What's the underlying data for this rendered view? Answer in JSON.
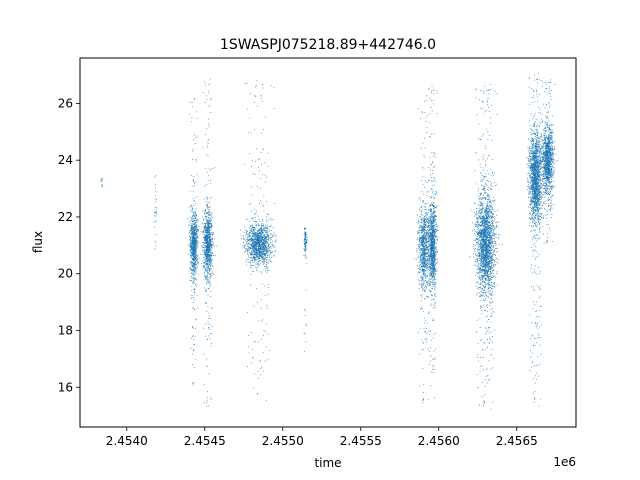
{
  "chart_data": {
    "type": "scatter",
    "title": "1SWASPJ075218.89+442746.0",
    "xlabel": "time",
    "ylabel": "flux",
    "x_offset_label": "1e6",
    "xlim": [
      2453700,
      2456880
    ],
    "ylim": [
      14.6,
      27.6
    ],
    "grid": false,
    "legend": "none",
    "marker_color": "#1f77b4",
    "x_ticks": [
      2454000,
      2454500,
      2455000,
      2455500,
      2456000,
      2456500
    ],
    "x_tick_labels": [
      "2.4540",
      "2.4545",
      "2.4550",
      "2.4555",
      "2.4560",
      "2.4565"
    ],
    "y_ticks": [
      16,
      18,
      20,
      22,
      24,
      26
    ],
    "y_tick_labels": [
      "16",
      "18",
      "20",
      "22",
      "24",
      "26"
    ],
    "series": [
      {
        "clusters": [
          {
            "x": 2453840,
            "x_spread": 3,
            "y": 23.3,
            "y_spread": 0.15,
            "y_min": 23.0,
            "y_max": 23.5,
            "n": 12
          },
          {
            "x": 2454185,
            "x_spread": 4,
            "y": 22.3,
            "y_spread": 0.8,
            "y_min": 20.8,
            "y_max": 23.5,
            "n": 30
          },
          {
            "x": 2454430,
            "x_spread": 12,
            "y": 21.0,
            "y_spread": 0.55,
            "y_min": 15.9,
            "y_max": 26.3,
            "n": 900
          },
          {
            "x": 2454520,
            "x_spread": 15,
            "y": 21.0,
            "y_spread": 0.6,
            "y_min": 15.3,
            "y_max": 27.0,
            "n": 1000
          },
          {
            "x": 2454845,
            "x_spread": 40,
            "y": 21.05,
            "y_spread": 0.35,
            "y_min": 15.5,
            "y_max": 27.0,
            "n": 1400
          },
          {
            "x": 2455145,
            "x_spread": 5,
            "y": 21.1,
            "y_spread": 0.25,
            "y_min": 17.2,
            "y_max": 21.6,
            "n": 120
          },
          {
            "x": 2455905,
            "x_spread": 18,
            "y": 20.9,
            "y_spread": 0.7,
            "y_min": 15.3,
            "y_max": 26.4,
            "n": 900
          },
          {
            "x": 2455960,
            "x_spread": 12,
            "y": 21.0,
            "y_spread": 0.75,
            "y_min": 15.6,
            "y_max": 26.8,
            "n": 1100
          },
          {
            "x": 2456300,
            "x_spread": 30,
            "y": 21.05,
            "y_spread": 0.85,
            "y_min": 15.2,
            "y_max": 26.8,
            "n": 2400
          },
          {
            "x": 2456620,
            "x_spread": 20,
            "y": 23.4,
            "y_spread": 0.8,
            "y_min": 15.3,
            "y_max": 27.2,
            "n": 1800
          },
          {
            "x": 2456700,
            "x_spread": 18,
            "y": 24.0,
            "y_spread": 0.55,
            "y_min": 21.0,
            "y_max": 26.9,
            "n": 1200
          }
        ]
      }
    ]
  }
}
